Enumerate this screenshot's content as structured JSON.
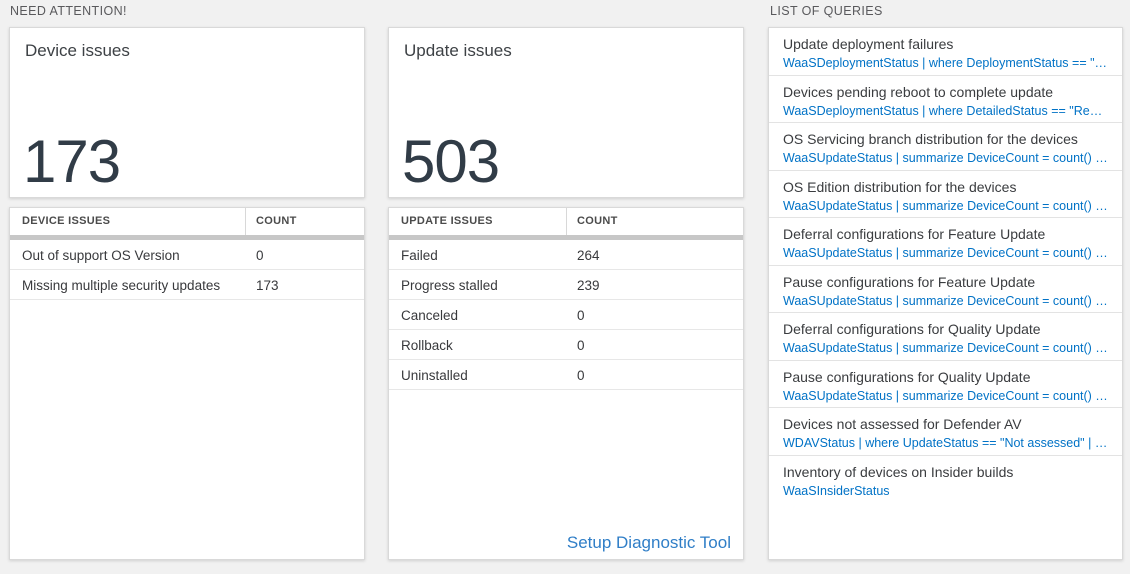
{
  "sections": {
    "need_attention": "NEED ATTENTION!",
    "list_of_queries": "LIST OF QUERIES"
  },
  "device_card": {
    "title": "Device issues",
    "big_number": "173",
    "table": {
      "headers": [
        "DEVICE ISSUES",
        "COUNT"
      ],
      "rows": [
        {
          "label": "Out of support OS Version",
          "count": "0"
        },
        {
          "label": "Missing multiple security updates",
          "count": "173"
        }
      ]
    }
  },
  "update_card": {
    "title": "Update issues",
    "big_number": "503",
    "table": {
      "headers": [
        "UPDATE ISSUES",
        "COUNT"
      ],
      "rows": [
        {
          "label": "Failed",
          "count": "264"
        },
        {
          "label": "Progress stalled",
          "count": "239"
        },
        {
          "label": "Canceled",
          "count": "0"
        },
        {
          "label": "Rollback",
          "count": "0"
        },
        {
          "label": "Uninstalled",
          "count": "0"
        }
      ]
    },
    "link_label": "Setup Diagnostic Tool"
  },
  "queries": {
    "items": [
      {
        "title": "Update deployment failures",
        "query": "WaaSDeploymentStatus | where DeploymentStatus == \"Failed\" |..."
      },
      {
        "title": "Devices pending reboot to complete update",
        "query": "WaaSDeploymentStatus | where DetailedStatus == \"Reboot pend..."
      },
      {
        "title": "OS Servicing branch distribution for the devices",
        "query": "WaaSUpdateStatus | summarize DeviceCount = count() by OSSer..."
      },
      {
        "title": "OS Edition distribution for the devices",
        "query": "WaaSUpdateStatus | summarize DeviceCount = count() by OSEdit..."
      },
      {
        "title": "Deferral configurations for Feature Update",
        "query": "WaaSUpdateStatus | summarize DeviceCount = count() by Featur..."
      },
      {
        "title": "Pause configurations for Feature Update",
        "query": "WaaSUpdateStatus | summarize DeviceCount = count() by Featur..."
      },
      {
        "title": "Deferral configurations for Quality Update",
        "query": "WaaSUpdateStatus | summarize DeviceCount = count() by Qualit..."
      },
      {
        "title": "Pause configurations for Quality Update",
        "query": "WaaSUpdateStatus | summarize DeviceCount = count() by Qualit..."
      },
      {
        "title": "Devices not assessed for Defender AV",
        "query": "WDAVStatus | where UpdateStatus == \"Not assessed\" | render ta..."
      },
      {
        "title": "Inventory of devices on Insider builds",
        "query": "WaaSInsiderStatus"
      }
    ]
  },
  "colors": {
    "query_blue": "#0072c6",
    "link_blue": "#2f7ec7",
    "big_number_color": "#313c47",
    "page_background": "#f1f1f1"
  }
}
